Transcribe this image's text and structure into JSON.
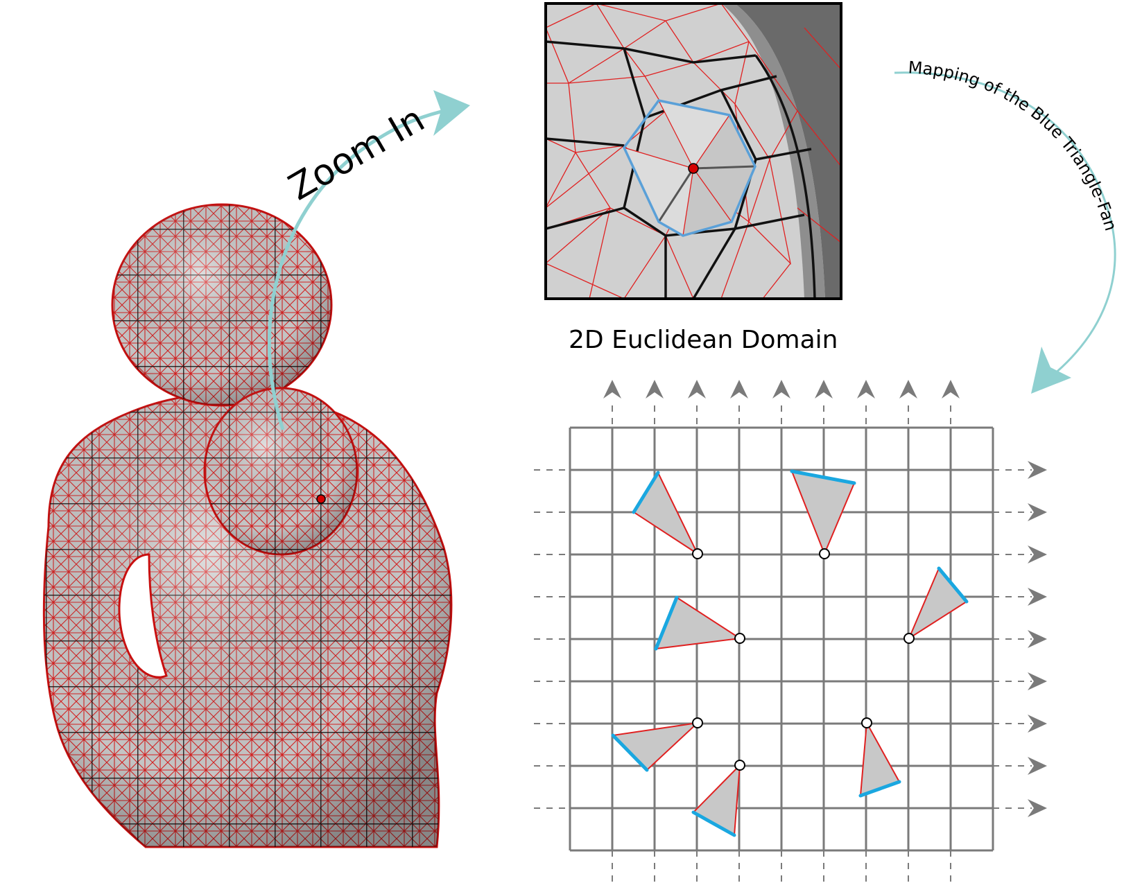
{
  "labels": {
    "zoom_in": "Zoom In",
    "mapping": "Mapping of the Blue Triangle-Fan",
    "domain_title": "2D Euclidean Domain"
  },
  "colors": {
    "mesh_red": "#e02020",
    "quad_black": "#111111",
    "surface_gray": "#c9c9c9",
    "arrow_teal": "#8fd0d0",
    "fan_blue": "#1aa7e0",
    "grid_gray": "#7a7a7a",
    "singular_vertex": "#d40000"
  },
  "icons": [
    "curved-arrow-icon",
    "grid-axis-arrow-icon",
    "vertex-dot-icon"
  ]
}
